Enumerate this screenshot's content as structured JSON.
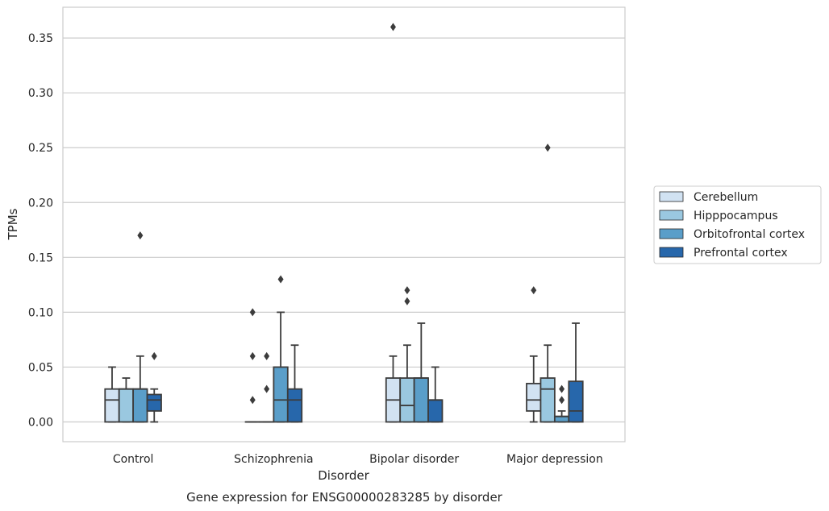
{
  "chart_data": {
    "type": "box",
    "caption": "Gene expression for ENSG00000283285 by disorder",
    "xlabel": "Disorder",
    "ylabel": "TPMs",
    "ylim": [
      -0.018,
      0.378
    ],
    "yticks": [
      0.0,
      0.05,
      0.1,
      0.15,
      0.2,
      0.25,
      0.3,
      0.35
    ],
    "ytick_labels": [
      "0.00",
      "0.05",
      "0.10",
      "0.15",
      "0.20",
      "0.25",
      "0.30",
      "0.35"
    ],
    "grid": "horizontal",
    "legend_position": "right",
    "categories": [
      "Control",
      "Schizophrenia",
      "Bipolar disorder",
      "Major depression"
    ],
    "series": [
      {
        "name": "Cerebellum",
        "color": "#d1e2f2",
        "boxes": [
          {
            "min": 0,
            "q1": 0,
            "median": 0.02,
            "q3": 0.03,
            "max": 0.05,
            "outliers": []
          },
          {
            "min": 0,
            "q1": 0,
            "median": 0,
            "q3": 0,
            "max": 0,
            "outliers": [
              0.02,
              0.06,
              0.1
            ]
          },
          {
            "min": 0,
            "q1": 0,
            "median": 0.02,
            "q3": 0.04,
            "max": 0.06,
            "outliers": [
              0.36
            ]
          },
          {
            "min": 0,
            "q1": 0.01,
            "median": 0.02,
            "q3": 0.035,
            "max": 0.06,
            "outliers": [
              0.12
            ]
          }
        ]
      },
      {
        "name": "Hipppocampus",
        "color": "#9ac8e0",
        "boxes": [
          {
            "min": 0,
            "q1": 0,
            "median": 0.03,
            "q3": 0.03,
            "max": 0.04,
            "outliers": []
          },
          {
            "min": 0,
            "q1": 0,
            "median": 0,
            "q3": 0,
            "max": 0,
            "outliers": [
              0.03,
              0.06
            ]
          },
          {
            "min": 0,
            "q1": 0,
            "median": 0.015,
            "q3": 0.04,
            "max": 0.07,
            "outliers": [
              0.11,
              0.12
            ]
          },
          {
            "min": 0,
            "q1": 0,
            "median": 0.03,
            "q3": 0.04,
            "max": 0.07,
            "outliers": [
              0.25
            ]
          }
        ]
      },
      {
        "name": "Orbitofrontal cortex",
        "color": "#5a9ec9",
        "boxes": [
          {
            "min": 0,
            "q1": 0,
            "median": 0.03,
            "q3": 0.03,
            "max": 0.06,
            "outliers": [
              0.17
            ]
          },
          {
            "min": 0,
            "q1": 0,
            "median": 0.02,
            "q3": 0.05,
            "max": 0.1,
            "outliers": [
              0.13
            ]
          },
          {
            "min": 0,
            "q1": 0,
            "median": 0.04,
            "q3": 0.04,
            "max": 0.09,
            "outliers": []
          },
          {
            "min": 0,
            "q1": 0,
            "median": 0.005,
            "q3": 0.005,
            "max": 0.01,
            "outliers": [
              0.02,
              0.03
            ]
          }
        ]
      },
      {
        "name": "Prefrontal cortex",
        "color": "#2767ab",
        "boxes": [
          {
            "min": 0,
            "q1": 0.01,
            "median": 0.02,
            "q3": 0.025,
            "max": 0.03,
            "outliers": [
              0.06
            ]
          },
          {
            "min": 0,
            "q1": 0,
            "median": 0.02,
            "q3": 0.03,
            "max": 0.07,
            "outliers": []
          },
          {
            "min": 0,
            "q1": 0,
            "median": 0.02,
            "q3": 0.02,
            "max": 0.05,
            "outliers": []
          },
          {
            "min": 0,
            "q1": 0,
            "median": 0.01,
            "q3": 0.037,
            "max": 0.09,
            "outliers": []
          }
        ]
      }
    ]
  }
}
